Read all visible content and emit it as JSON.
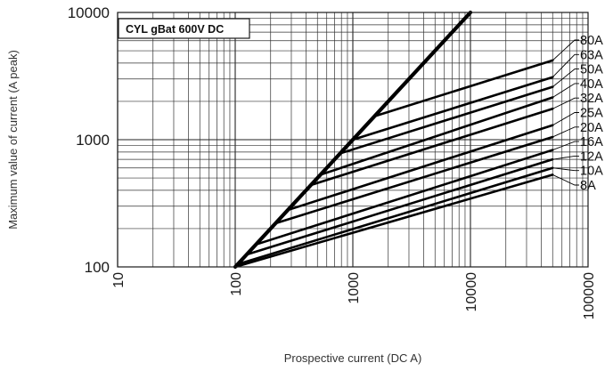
{
  "chart_data": {
    "type": "line",
    "scale": {
      "x": "log",
      "y": "log"
    },
    "xlim": [
      10,
      100000
    ],
    "ylim": [
      100,
      10000
    ],
    "x_ticks": [
      "10",
      "100",
      "1000",
      "10000",
      "100000"
    ],
    "y_ticks": [
      "100",
      "1000",
      "10000"
    ],
    "xlabel": "Prospective current (DC A)",
    "ylabel": "Maximum value of current (A peak)",
    "legend_title": "CYL gBat 600V DC",
    "grid": true,
    "envelope": {
      "x": [
        100,
        10000
      ],
      "y": [
        100,
        10000
      ]
    },
    "series": [
      {
        "name": "80A",
        "x": [
          1500,
          50000
        ],
        "y": [
          1520,
          4200
        ]
      },
      {
        "name": "63A",
        "x": [
          1000,
          50000
        ],
        "y": [
          1000,
          3100
        ]
      },
      {
        "name": "50A",
        "x": [
          780,
          50000
        ],
        "y": [
          780,
          2600
        ]
      },
      {
        "name": "40A",
        "x": [
          530,
          50000
        ],
        "y": [
          530,
          2150
        ]
      },
      {
        "name": "32A",
        "x": [
          440,
          50000
        ],
        "y": [
          440,
          1750
        ]
      },
      {
        "name": "25A",
        "x": [
          280,
          50000
        ],
        "y": [
          280,
          1300
        ]
      },
      {
        "name": "20A",
        "x": [
          220,
          50000
        ],
        "y": [
          220,
          1050
        ]
      },
      {
        "name": "16A",
        "x": [
          150,
          50000
        ],
        "y": [
          150,
          830
        ]
      },
      {
        "name": "12A",
        "x": [
          125,
          50000
        ],
        "y": [
          125,
          700
        ]
      },
      {
        "name": "10A",
        "x": [
          105,
          50000
        ],
        "y": [
          105,
          600
        ]
      },
      {
        "name": "8A",
        "x": [
          100,
          50000
        ],
        "y": [
          100,
          530
        ]
      }
    ]
  }
}
